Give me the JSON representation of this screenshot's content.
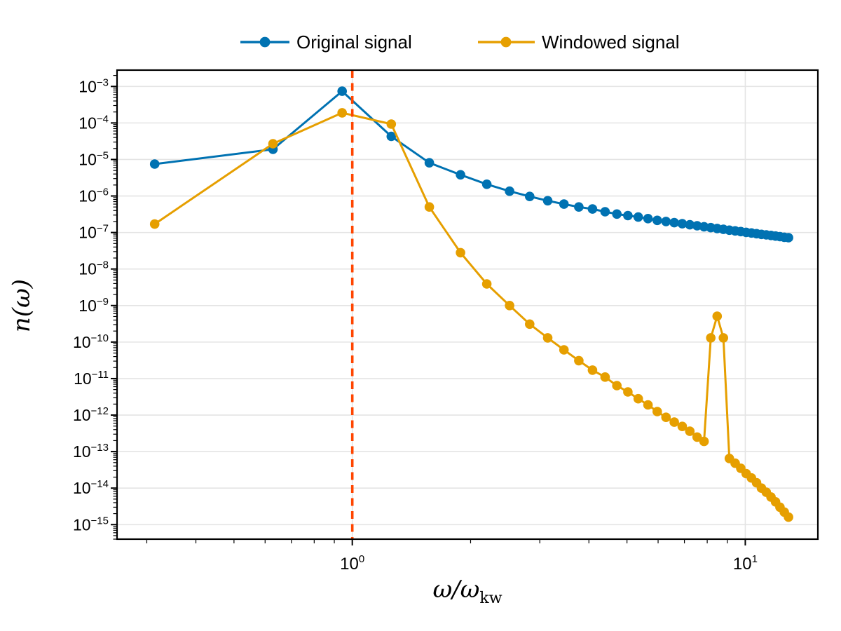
{
  "figure": {
    "background": "#ffffff",
    "plot_background": "#ffffff",
    "grid_color": "#e4e4e4",
    "spine_color": "#000000"
  },
  "legend": {
    "position": "top-center",
    "entries": [
      {
        "label": "Original signal",
        "color": "#0072B2",
        "marker": "circle-line"
      },
      {
        "label": "Windowed signal",
        "color": "#E69F00",
        "marker": "circle-line"
      }
    ]
  },
  "chart_data": {
    "type": "line",
    "xscale": "log",
    "yscale": "log",
    "xlabel": {
      "main": "ω/ω",
      "subscript": "kw"
    },
    "ylabel": "n(ω)",
    "xlim": [
      0.252,
      15.3
    ],
    "ylim": [
      4e-16,
      0.0028
    ],
    "x_major_ticks": [
      1,
      10
    ],
    "y_major_tick_exponents": [
      -3,
      -4,
      -5,
      -6,
      -7,
      -8,
      -9,
      -10,
      -11,
      -12,
      -13,
      -14,
      -15
    ],
    "grid": true,
    "vline": {
      "x": 1.0,
      "color": "#FF4500",
      "style": "dashed",
      "width": 3.6
    },
    "x": [
      0.3142,
      0.6283,
      0.9425,
      1.2566,
      1.5708,
      1.885,
      2.1991,
      2.5133,
      2.8274,
      3.1416,
      3.4558,
      3.7699,
      4.0841,
      4.3982,
      4.7124,
      5.0265,
      5.3407,
      5.6549,
      5.969,
      6.2832,
      6.5973,
      6.9115,
      7.2257,
      7.5398,
      7.854,
      8.1681,
      8.4823,
      8.7965,
      9.1106,
      9.4248,
      9.7389,
      10.0531,
      10.3673,
      10.6814,
      10.9956,
      11.3097,
      11.6239,
      11.9381,
      12.2522,
      12.5664,
      12.8805
    ],
    "series": [
      {
        "name": "Original signal",
        "color": "#0072B2",
        "values": [
          7.5e-06,
          1.9e-05,
          0.00074,
          4.3e-05,
          8.1e-06,
          3.8e-06,
          2.1e-06,
          1.35e-06,
          9.7e-07,
          7.4e-07,
          6e-07,
          5e-07,
          4.4e-07,
          3.7e-07,
          3.2e-07,
          2.9e-07,
          2.65e-07,
          2.4e-07,
          2.15e-07,
          2e-07,
          1.86e-07,
          1.74e-07,
          1.63e-07,
          1.53e-07,
          1.44e-07,
          1.36e-07,
          1.29e-07,
          1.22e-07,
          1.16e-07,
          1.11e-07,
          1.06e-07,
          1.01e-07,
          9.7e-08,
          9.3e-08,
          8.9e-08,
          8.6e-08,
          8.3e-08,
          8e-08,
          7.7e-08,
          7.4e-08,
          7.2e-08
        ]
      },
      {
        "name": "Windowed signal",
        "color": "#E69F00",
        "values": [
          1.7e-07,
          2.7e-05,
          0.00019,
          9.3e-05,
          5e-07,
          2.8e-08,
          3.9e-09,
          1e-09,
          3.1e-10,
          1.3e-10,
          6.1e-11,
          3.1e-11,
          1.7e-11,
          1.1e-11,
          6.4e-12,
          4.3e-12,
          2.8e-12,
          1.9e-12,
          1.25e-12,
          8.7e-13,
          6.4e-13,
          4.9e-13,
          3.6e-13,
          2.5e-13,
          1.9e-13,
          1.3e-10,
          5.1e-10,
          1.3e-10,
          6.5e-14,
          4.8e-14,
          3.5e-14,
          2.5e-14,
          1.9e-14,
          1.4e-14,
          1e-14,
          7.7e-15,
          5.7e-15,
          4.2e-15,
          3e-15,
          2.2e-15,
          1.6e-15
        ]
      }
    ]
  }
}
